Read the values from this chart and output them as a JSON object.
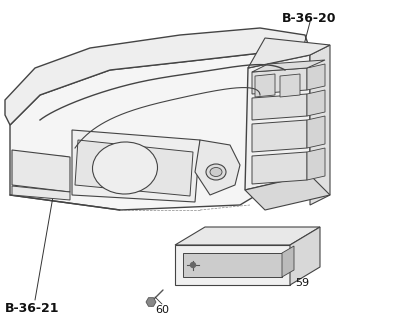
{
  "background_color": "#ffffff",
  "line_color": "#444444",
  "label_B3620": "B-36-20",
  "label_B3621": "B-36-21",
  "label_59": "59",
  "label_60": "60",
  "fig_width": 3.93,
  "fig_height": 3.2,
  "dpi": 100
}
